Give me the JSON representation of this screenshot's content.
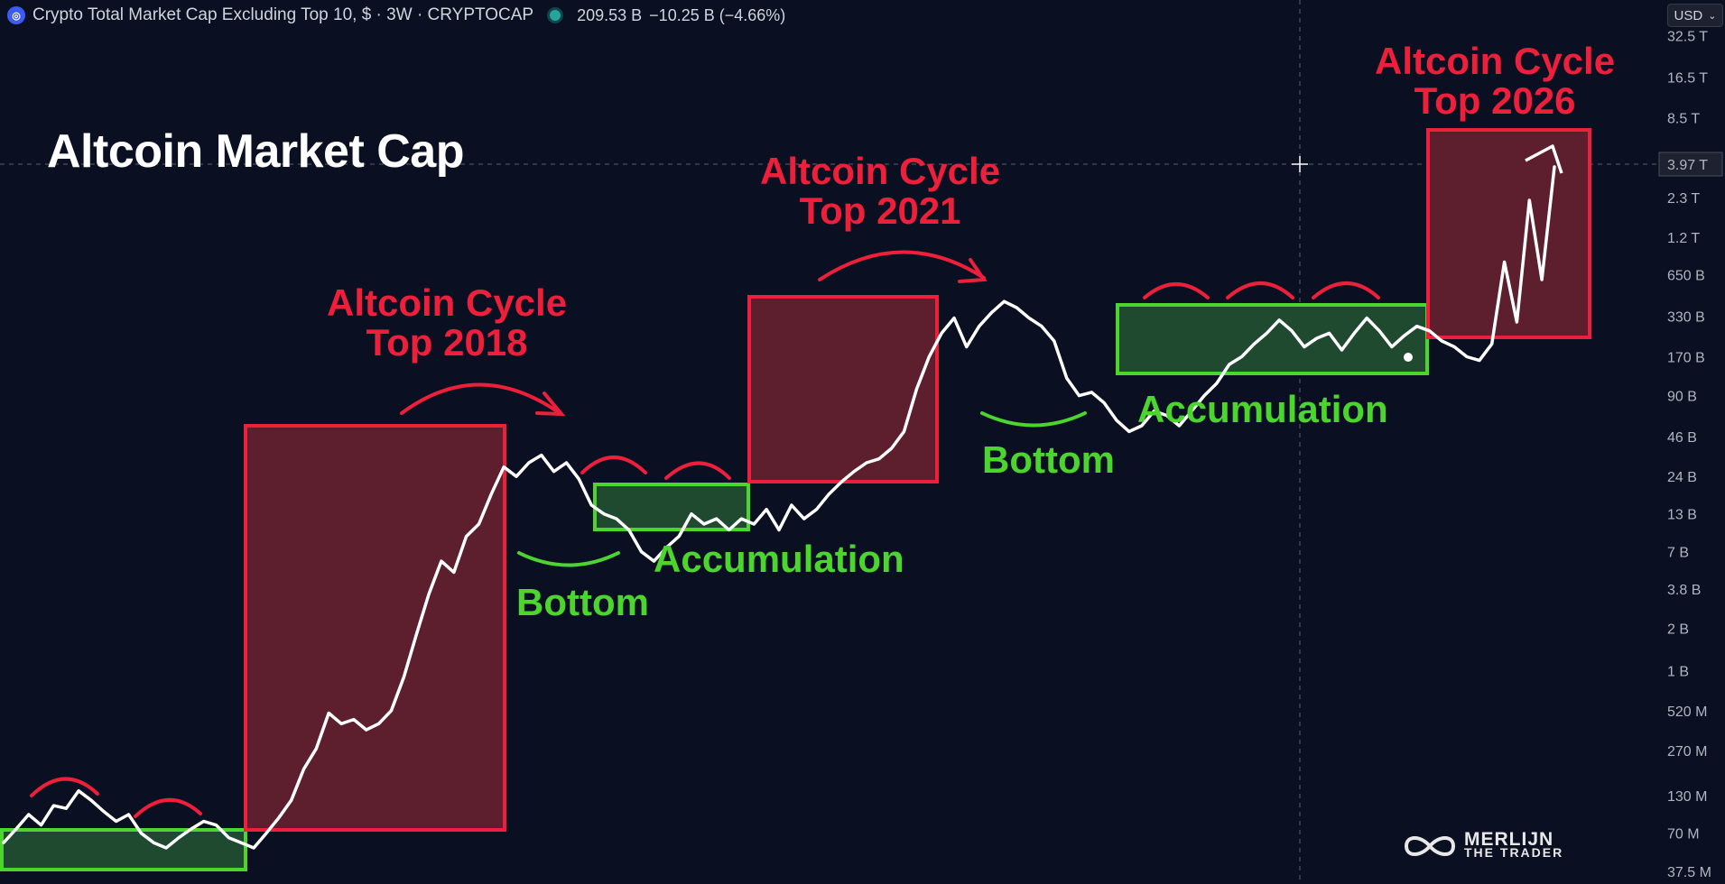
{
  "header": {
    "symbol_title": "Crypto Total Market Cap Excluding Top 10, $ · 3W · CRYPTOCAP",
    "value": "209.53 B",
    "change": "−10.25 B (−4.66%)",
    "currency": "USD",
    "live_color": "#26a69a"
  },
  "title": "Altcoin Market Cap",
  "annotations": {
    "top_2018": [
      "Altcoin Cycle",
      "Top 2018"
    ],
    "top_2021": [
      "Altcoin Cycle",
      "Top 2021"
    ],
    "top_2026": [
      "Altcoin Cycle",
      "Top 2026"
    ],
    "accumulation_1": "Accumulation",
    "accumulation_2": "Accumulation",
    "bottom_1": "Bottom",
    "bottom_2": "Bottom"
  },
  "watermark": {
    "line1": "MERLIJN",
    "line2": "THE TRADER"
  },
  "colors": {
    "background": "#0a1022",
    "red": "#ee1f3b",
    "red_fill": "#5d1e2d",
    "green": "#4bd52e",
    "green_fill": "#1f4a2f",
    "line": "#ffffff"
  },
  "chart_data": {
    "type": "line",
    "title": "Altcoin Market Cap",
    "scale": "log",
    "y_axis_ticks": [
      "37.5 M",
      "70 M",
      "130 M",
      "270 M",
      "520 M",
      "1 B",
      "2 B",
      "3.8 B",
      "7 B",
      "13 B",
      "24 B",
      "46 B",
      "90 B",
      "170 B",
      "330 B",
      "650 B",
      "1.2 T",
      "2.3 T",
      "3.97 T",
      "8.5 T",
      "16.5 T",
      "32.5 T"
    ],
    "crosshair_value": "3.97 T",
    "series": [
      {
        "values_usd": [
          60000000.0,
          75000000.0,
          95000000.0,
          80000000.0,
          110000000.0,
          105000000.0,
          140000000.0,
          120000000.0,
          100000000.0,
          85000000.0,
          95000000.0,
          70000000.0,
          60000000.0,
          55000000.0,
          65000000.0,
          75000000.0,
          85000000.0,
          80000000.0,
          65000000.0,
          60000000.0,
          55000000.0,
          70000000.0,
          90000000.0,
          120000000.0,
          200000000.0,
          280000000.0,
          500000000.0,
          420000000.0,
          450000000.0,
          380000000.0,
          420000000.0,
          520000000.0,
          900000000.0,
          1800000000.0,
          3500000000.0,
          6000000000.0,
          5000000000.0,
          9000000000.0,
          11000000000.0,
          18000000000.0,
          28000000000.0,
          24000000000.0,
          30000000000.0,
          34000000000.0,
          26000000000.0,
          30000000000.0,
          23000000000.0,
          15000000000.0,
          13000000000.0,
          12000000000.0,
          10000000000.0,
          7000000000.0,
          6000000000.0,
          7500000000.0,
          9000000000.0,
          13000000000.0,
          11000000000.0,
          12000000000.0,
          10000000000.0,
          12000000000.0,
          11000000000.0,
          14000000000.0,
          10000000000.0,
          15000000000.0,
          12000000000.0,
          14000000000.0,
          18000000000.0,
          22000000000.0,
          26000000000.0,
          30000000000.0,
          32000000000.0,
          38000000000.0,
          50000000000.0,
          100000000000.0,
          170000000000.0,
          250000000000.0,
          320000000000.0,
          200000000000.0,
          280000000000.0,
          350000000000.0,
          420000000000.0,
          380000000000.0,
          320000000000.0,
          280000000000.0,
          220000000000.0,
          120000000000.0,
          90000000000.0,
          95000000000.0,
          80000000000.0,
          60000000000.0,
          50000000000.0,
          55000000000.0,
          70000000000.0,
          65000000000.0,
          55000000000.0,
          70000000000.0,
          90000000000.0,
          110000000000.0,
          150000000000.0,
          170000000000.0,
          210000000000.0,
          250000000000.0,
          310000000000.0,
          260000000000.0,
          200000000000.0,
          230000000000.0,
          250000000000.0,
          190000000000.0,
          250000000000.0,
          320000000000.0,
          260000000000.0,
          200000000000.0,
          240000000000.0,
          280000000000.0,
          260000000000.0,
          220000000000.0,
          200000000000.0,
          170000000000.0,
          160000000000.0,
          209530000000.0,
          800000000000.0,
          300000000000.0,
          2200000000000.0,
          600000000000.0,
          3800000000000.0
        ]
      }
    ],
    "cycle_tops": [
      "2018",
      "2021",
      "2026"
    ],
    "zones": [
      {
        "type": "accumulation",
        "label": ""
      },
      {
        "type": "cycle_top",
        "label": "Altcoin Cycle Top 2018"
      },
      {
        "type": "accumulation",
        "label": "Accumulation"
      },
      {
        "type": "cycle_top",
        "label": "Altcoin Cycle Top 2021"
      },
      {
        "type": "accumulation",
        "label": "Accumulation"
      },
      {
        "type": "cycle_top",
        "label": "Altcoin Cycle Top 2026"
      }
    ]
  }
}
